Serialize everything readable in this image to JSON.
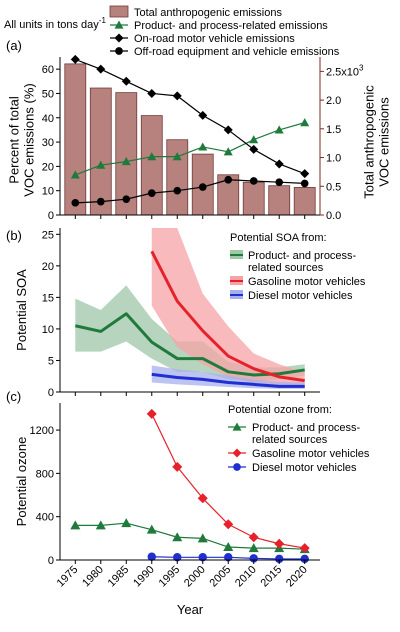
{
  "figure": {
    "units_note": "All units in tons day",
    "units_note_sup": "-1",
    "x_axis_label": "Year"
  },
  "colors": {
    "bar_fill": "#b7817d",
    "bar_stroke": "#6f3b38",
    "product": "#1f7a3c",
    "onroad": "#000000",
    "offroad": "#000000",
    "gasoline": "#e5222b",
    "gasoline_band": "#f5a3a6",
    "diesel": "#1f2fd1",
    "diesel_band": "#a8b0ec",
    "product_band": "#9fc7a8",
    "right_axis": "#7a2d1b"
  },
  "chart_data": [
    {
      "panel": "a",
      "type": "bar",
      "x": [
        1975,
        1980,
        1985,
        1990,
        1995,
        2000,
        2005,
        2010,
        2015,
        2020
      ],
      "xlim": [
        1972,
        2023
      ],
      "xticks": [
        1975,
        1980,
        1985,
        1990,
        1995,
        2000,
        2005,
        2010,
        2015,
        2020
      ],
      "ylabel": "Percent of total\nVOC emissions (%)",
      "ylim": [
        0,
        65
      ],
      "yticks": [
        0,
        10,
        20,
        30,
        40,
        50,
        60
      ],
      "y2label": "Total anthropogenic\nVOC emissions",
      "y2lim": [
        0,
        2.75
      ],
      "y2ticks": [
        0.0,
        0.5,
        1.0,
        1.5,
        2.0,
        2.5
      ],
      "y2tick_labels": [
        "0.0",
        "0.5",
        "1.0",
        "1.5",
        "2.0",
        "2.5x10"
      ],
      "y2_exponent": "3",
      "bars": {
        "name": "Total anthropogenic emissions",
        "values": [
          2.63,
          2.21,
          2.13,
          1.73,
          1.31,
          1.06,
          0.7,
          0.57,
          0.51,
          0.48
        ]
      },
      "series": [
        {
          "name": "Product- and process-related emissions",
          "key": "product",
          "marker": "triangle",
          "values": [
            16.5,
            20.5,
            22,
            24,
            24,
            28,
            26,
            31,
            35,
            38
          ]
        },
        {
          "name": "On-road motor vehicle emissions",
          "key": "onroad",
          "marker": "diamond",
          "values": [
            64,
            60,
            55,
            50,
            49,
            41,
            35,
            27,
            21,
            17
          ]
        },
        {
          "name": "Off-road equipment and vehicle emissions",
          "key": "offroad",
          "marker": "circle",
          "values": [
            5,
            5.5,
            6.5,
            9,
            10,
            11.5,
            14.5,
            14,
            13.5,
            13
          ]
        }
      ]
    },
    {
      "panel": "b",
      "type": "line",
      "ylabel": "Potential SOA",
      "ylim": [
        0,
        26
      ],
      "yticks": [
        0,
        5,
        10,
        15,
        20,
        25
      ],
      "legend_title": "Potential SOA from:",
      "series": [
        {
          "name": "Product- and process-related sources",
          "key": "product",
          "x": [
            1975,
            1980,
            1985,
            1990,
            1995,
            2000,
            2005,
            2010,
            2015,
            2020
          ],
          "values": [
            10.5,
            9.6,
            12.4,
            7.9,
            5.3,
            5.3,
            3.2,
            2.7,
            2.9,
            3.5
          ],
          "upper": [
            14.8,
            13,
            16.9,
            11.6,
            8,
            8,
            4.8,
            3.9,
            3.9,
            4.4
          ],
          "lower": [
            6.4,
            6.4,
            8,
            5.3,
            3.2,
            3.2,
            2,
            1.7,
            2,
            2.6
          ]
        },
        {
          "name": "Gasoline motor vehicles",
          "key": "gasoline",
          "x": [
            1990,
            1995,
            2000,
            2005,
            2010,
            2015,
            2020
          ],
          "values": [
            22.3,
            14.4,
            9.7,
            5.7,
            3.7,
            2.4,
            1.8
          ],
          "upper": [
            26,
            26,
            15.6,
            10.4,
            6.1,
            4.4,
            3.1
          ],
          "lower": [
            13.7,
            7.1,
            4.4,
            2.4,
            1.3,
            0.9,
            0.7
          ]
        },
        {
          "name": "Diesel motor vehicles",
          "key": "diesel",
          "x": [
            1990,
            1995,
            2000,
            2005,
            2010,
            2015,
            2020
          ],
          "values": [
            2.8,
            2.3,
            2,
            1.5,
            1.2,
            0.9,
            0.9
          ],
          "upper": [
            4.2,
            3.6,
            3.2,
            2.6,
            2,
            1.6,
            1.5
          ],
          "lower": [
            1.5,
            1.2,
            1,
            0.8,
            0.6,
            0.5,
            0.5
          ]
        }
      ]
    },
    {
      "panel": "c",
      "type": "line",
      "ylabel": "Potential  ozone",
      "ylim": [
        0,
        1450
      ],
      "yticks": [
        0,
        400,
        800,
        1200
      ],
      "xlabel": "Year",
      "legend_title": "Potential ozone from:",
      "series": [
        {
          "name": "Product- and process-related sources",
          "key": "product",
          "marker": "triangle",
          "x": [
            1975,
            1980,
            1985,
            1990,
            1995,
            2000,
            2005,
            2010,
            2015,
            2020
          ],
          "values": [
            320,
            320,
            340,
            280,
            210,
            200,
            120,
            110,
            110,
            100
          ]
        },
        {
          "name": "Gasoline motor vehicles",
          "key": "gasoline",
          "marker": "diamond",
          "x": [
            1990,
            1995,
            2000,
            2005,
            2010,
            2015,
            2020
          ],
          "values": [
            1350,
            860,
            570,
            330,
            210,
            150,
            110
          ]
        },
        {
          "name": "Diesel motor vehicles",
          "key": "diesel",
          "marker": "circle",
          "x": [
            1990,
            1995,
            2000,
            2005,
            2010,
            2015,
            2020
          ],
          "values": [
            30,
            25,
            25,
            25,
            15,
            10,
            10
          ]
        }
      ]
    }
  ]
}
